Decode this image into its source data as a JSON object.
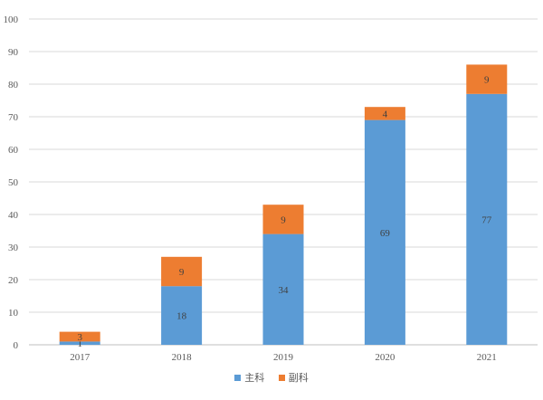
{
  "chart_data": {
    "type": "bar",
    "stacked": true,
    "categories": [
      "2017",
      "2018",
      "2019",
      "2020",
      "2021"
    ],
    "series": [
      {
        "name": "主科",
        "color": "#5b9bd5",
        "values": [
          1,
          18,
          34,
          69,
          77
        ]
      },
      {
        "name": "副科",
        "color": "#ed7d31",
        "values": [
          3,
          9,
          9,
          4,
          9
        ]
      }
    ],
    "ylim": [
      0,
      100
    ],
    "yticks": [
      0,
      10,
      20,
      30,
      40,
      50,
      60,
      70,
      80,
      90,
      100
    ],
    "grid": true,
    "legend_position": "bottom",
    "data_labels": true
  }
}
